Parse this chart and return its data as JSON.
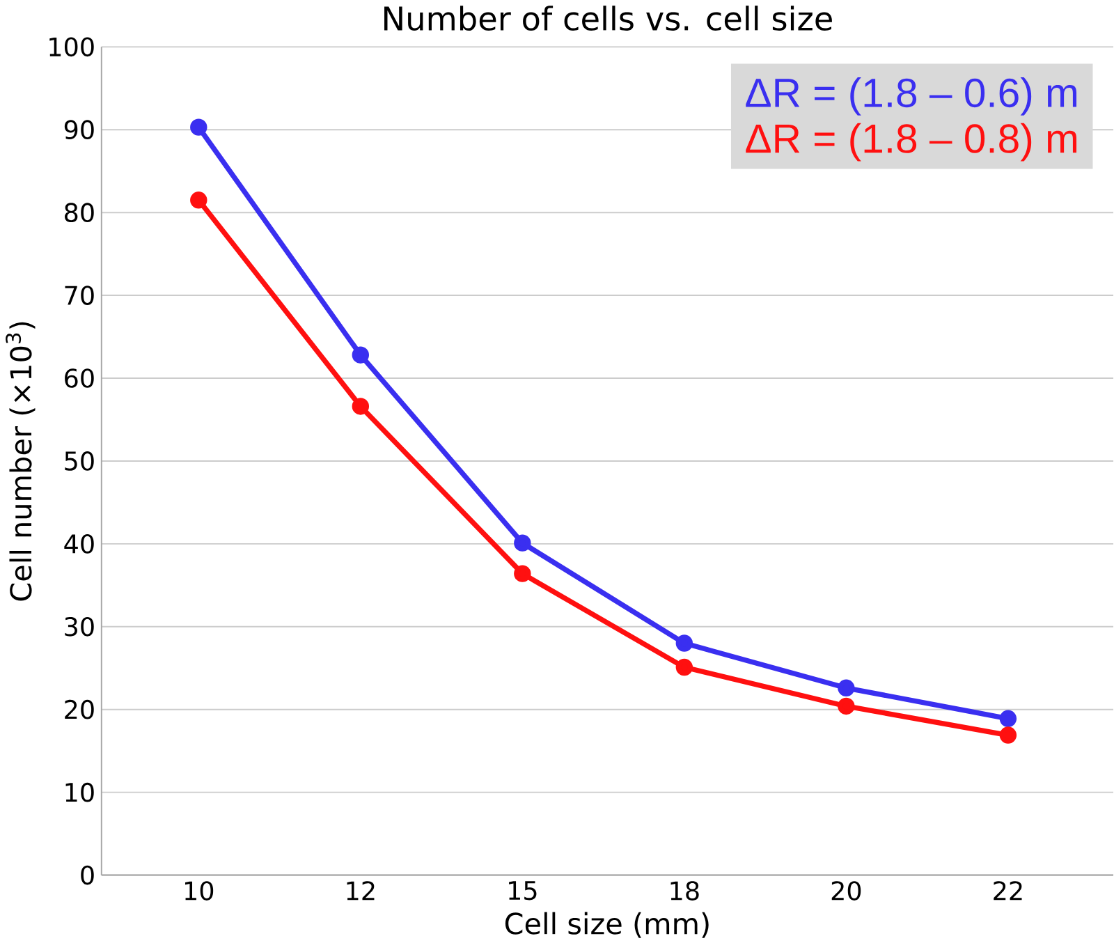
{
  "chart_data": {
    "type": "line",
    "title": "Number of cells vs. cell size",
    "xlabel": "Cell size (mm)",
    "ylabel": "Cell number (×10$^{3}$)",
    "categories": [
      "10",
      "12",
      "15",
      "18",
      "20",
      "22"
    ],
    "series": [
      {
        "name": "ΔR = (1.8 – 0.6) m",
        "color": "#3a2ff0",
        "values": [
          90.3,
          62.8,
          40.1,
          28.0,
          22.6,
          18.9
        ]
      },
      {
        "name": "ΔR = (1.8 – 0.8) m",
        "color": "#ff1010",
        "values": [
          81.5,
          56.6,
          36.4,
          25.1,
          20.4,
          16.9
        ]
      }
    ],
    "ylim": [
      0,
      100
    ],
    "yticks": [
      0,
      10,
      20,
      30,
      40,
      50,
      60,
      70,
      80,
      90,
      100
    ],
    "grid": "y",
    "legend": "top right",
    "marker": "circle",
    "line_style": "solid"
  }
}
